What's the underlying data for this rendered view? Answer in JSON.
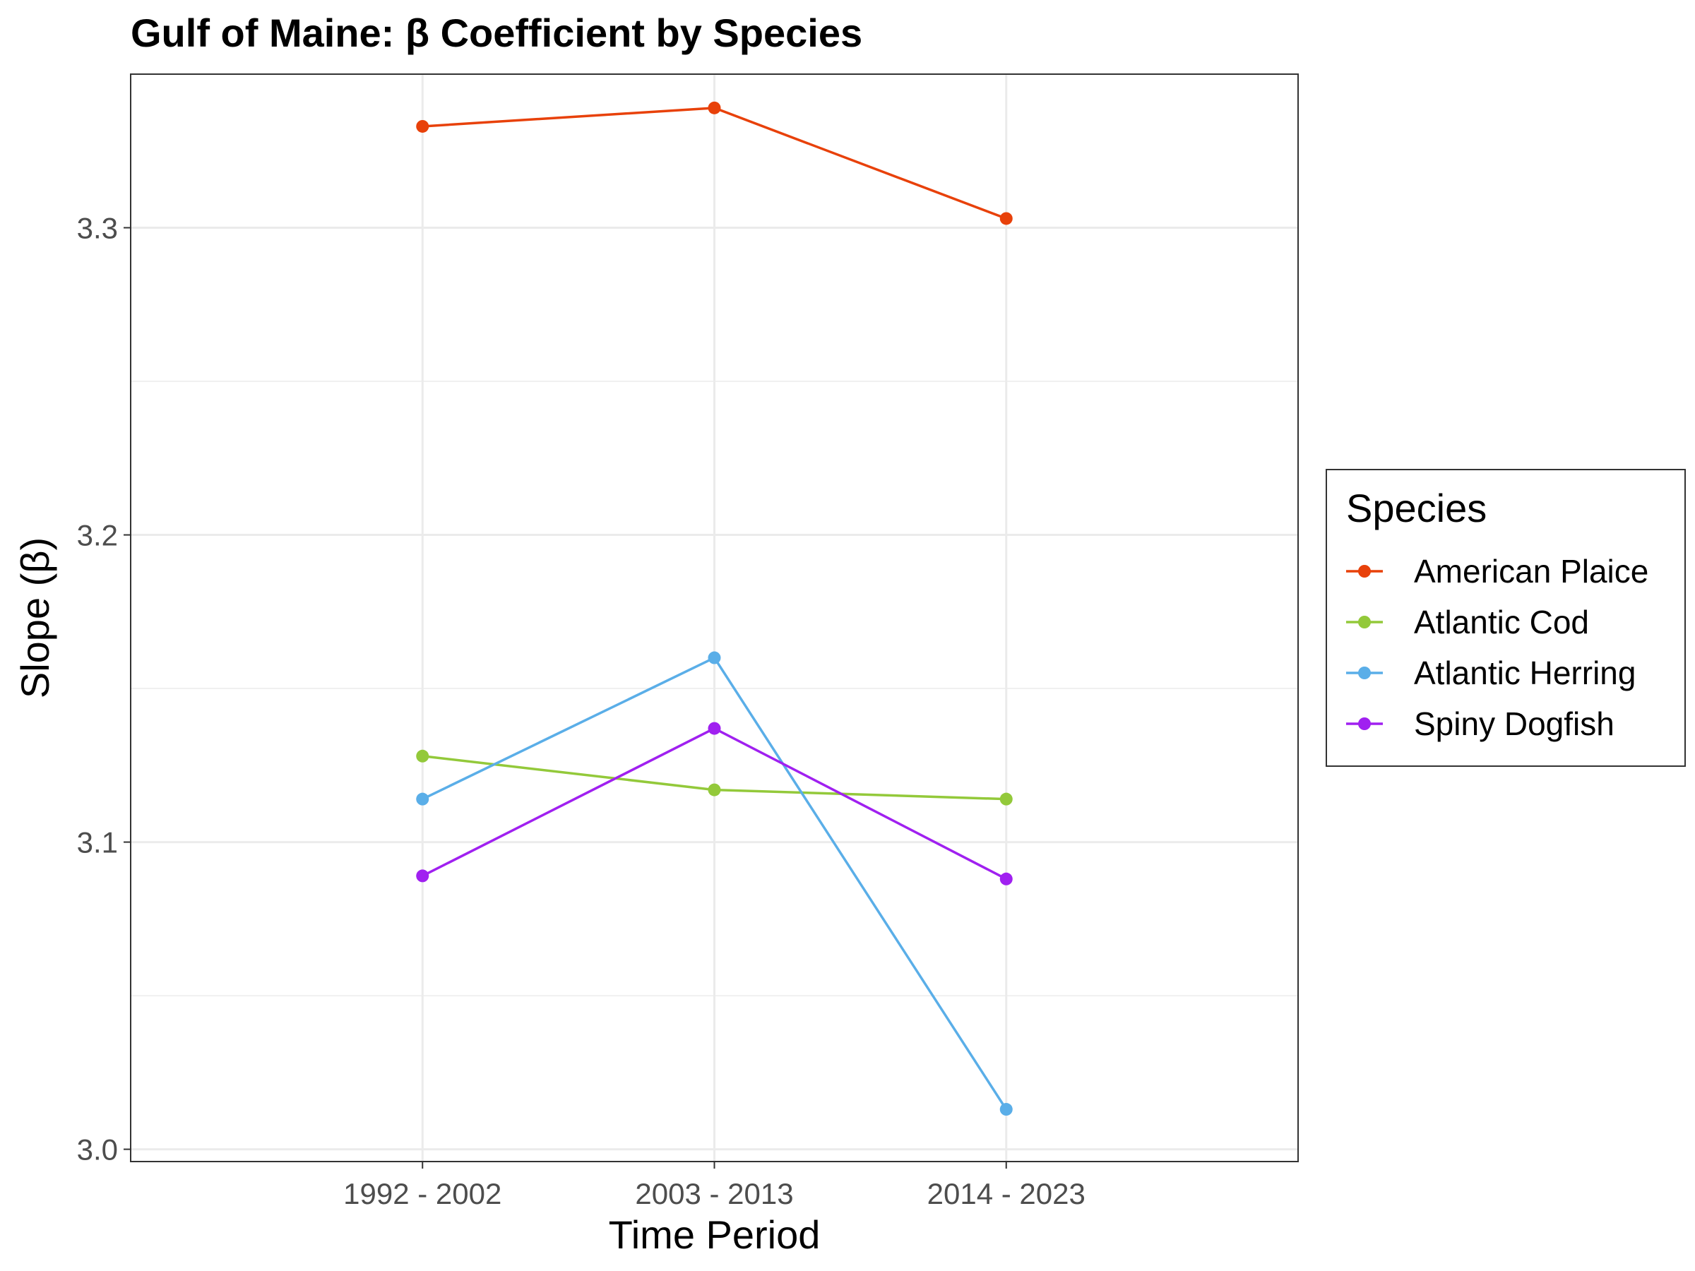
{
  "chart_data": {
    "type": "line",
    "title": "Gulf of Maine: β Coefficient by Species",
    "xlabel": "Time Period",
    "ylabel": "Slope (β)",
    "categories": [
      "1992 - 2002",
      "2003 - 2013",
      "2014 - 2023"
    ],
    "ylim": [
      2.996,
      3.35
    ],
    "yticks": [
      3.0,
      3.1,
      3.2,
      3.3
    ],
    "ytick_labels": [
      "3.0",
      "3.1",
      "3.2",
      "3.3"
    ],
    "grid": true,
    "legend": {
      "title": "Species",
      "position": "right"
    },
    "series": [
      {
        "name": "American Plaice",
        "color": "#E8410A",
        "values": [
          3.333,
          3.339,
          3.303
        ]
      },
      {
        "name": "Atlantic Cod",
        "color": "#93C93A",
        "values": [
          3.128,
          3.117,
          3.114
        ]
      },
      {
        "name": "Atlantic Herring",
        "color": "#5AAEE8",
        "values": [
          3.114,
          3.16,
          3.013
        ]
      },
      {
        "name": "Spiny Dogfish",
        "color": "#A020F0",
        "values": [
          3.089,
          3.137,
          3.088
        ]
      }
    ]
  }
}
